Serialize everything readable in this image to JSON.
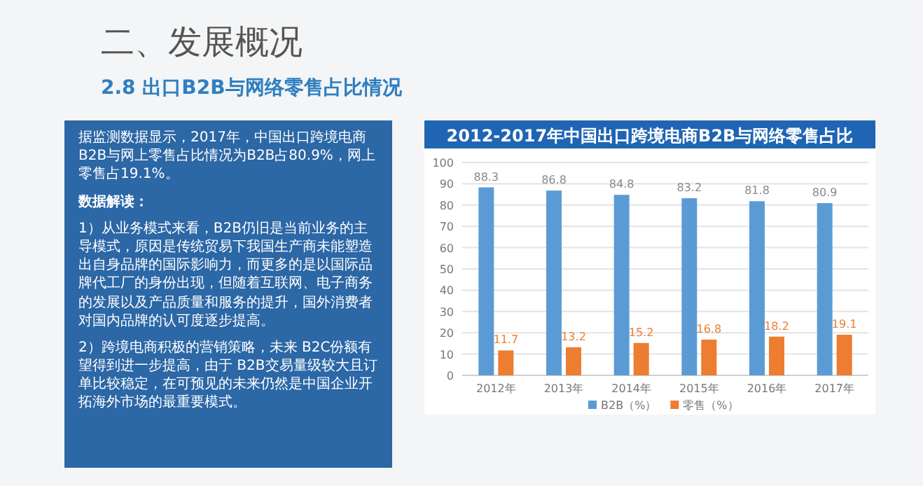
{
  "chart_data": {
    "type": "bar",
    "title": "2012-2017年中国出口跨境电商B2B与网络零售占比",
    "categories": [
      "2012年",
      "2013年",
      "2014年",
      "2015年",
      "2016年",
      "2017年"
    ],
    "series": [
      {
        "name": "B2B（%）",
        "color": "#5b9bd5",
        "values": [
          88.3,
          86.8,
          84.8,
          83.2,
          81.8,
          80.9
        ]
      },
      {
        "name": "零售（%）",
        "color": "#ed7d31",
        "values": [
          11.7,
          13.2,
          15.2,
          16.8,
          18.2,
          19.1
        ]
      }
    ],
    "ylim": [
      0,
      100
    ],
    "yticks": [
      0,
      10,
      20,
      30,
      40,
      50,
      60,
      70,
      80,
      90,
      100
    ],
    "grid": "y",
    "legend": "bottom",
    "data_labels": true,
    "annotations": [
      "二、发展概况",
      "2.8 出口B2B与网络零售占比情况",
      "据监测数据显示，2017年，中国出口跨境电商B2B与网上零售占比情况为B2B占80.9%，网上零售占19.1%。",
      "数据解读：",
      "1）从业务模式来看，B2B仍旧是当前业务的主导模式，原因是传统贸易下我国生产商未能塑造出自身品牌的国际影响力，而更多的是以国际品牌代工厂的身份出现，但随着互联网、电子商务的发展以及产品质量和服务的提升，国外消费者对国内品牌的认可度逐步提高。",
      "2）跨境电商积极的营销策略，未来 B2C份额有望得到进一步提高，由于 B2B交易量级较大且订单比较稳定，在可预见的未来仍然是中国企业开拓海外市场的最重要模式。"
    ]
  }
}
